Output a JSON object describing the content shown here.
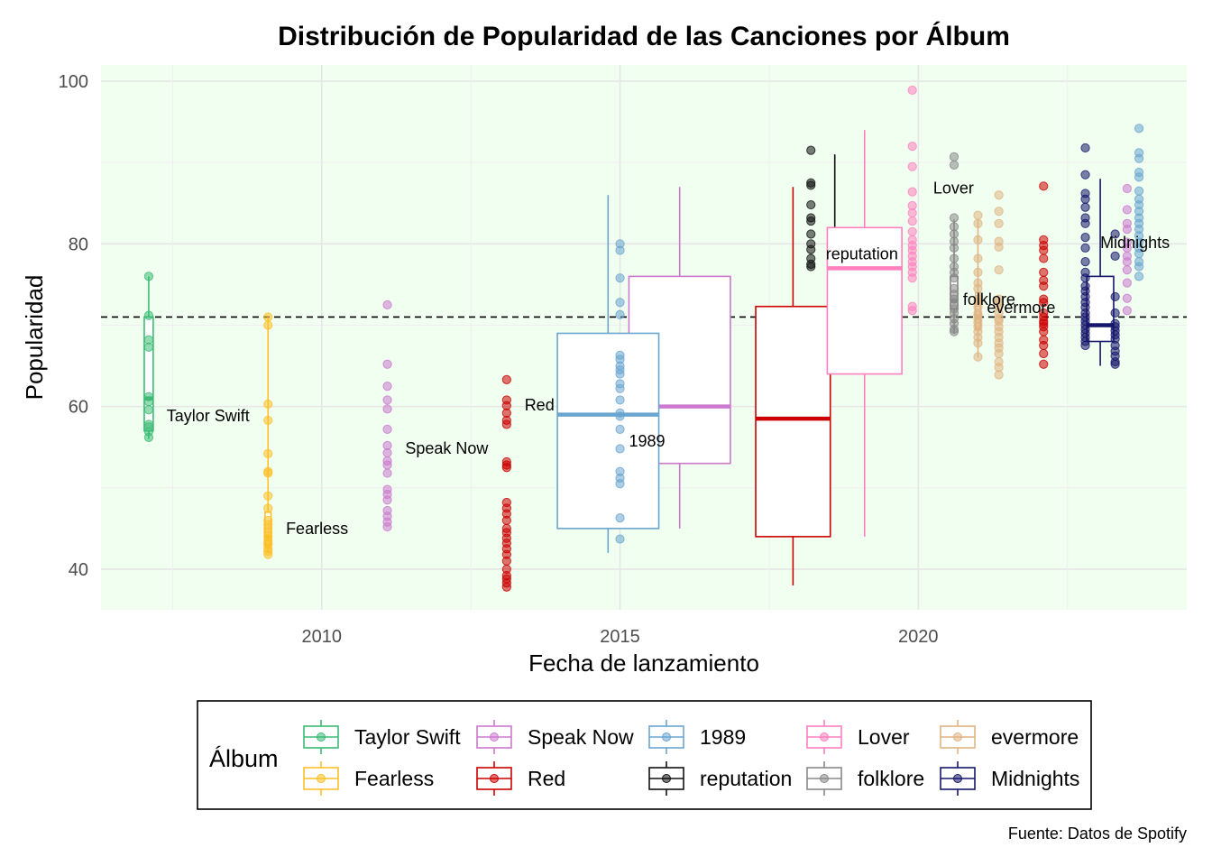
{
  "chart_data": {
    "type": "box+scatter",
    "title": "Distribución de Popularidad de las Canciones por Álbum",
    "xlabel": "Fecha de lanzamiento",
    "ylabel": "Popularidad",
    "caption": "Fuente: Datos de Spotify",
    "legend_title": "Álbum",
    "xlim": [
      2006.3,
      2024.5
    ],
    "ylim": [
      35,
      102
    ],
    "x_ticks": [
      2010,
      2015,
      2020
    ],
    "y_ticks": [
      40,
      60,
      80,
      100
    ],
    "reference_line": {
      "y": 71,
      "style": "dashed"
    },
    "background": "#f0fff0",
    "albums": [
      {
        "name": "Taylor Swift",
        "color": "#3cbb75",
        "x": 2007.1,
        "box_x": 2007.1,
        "box_width": 0.15,
        "box": {
          "min": 56,
          "q1": 57,
          "median": 61,
          "q3": 71,
          "max": 76
        },
        "points": [
          76,
          71.2,
          68.2,
          67.3,
          61.2,
          60.6,
          59.6,
          57.8,
          57.5,
          56.9,
          56.2
        ],
        "label": {
          "text": "Taylor Swift",
          "x": 2007.4,
          "y": 58.2
        }
      },
      {
        "name": "Fearless",
        "color": "#fdc029",
        "x": 2009.1,
        "box_x": 2009.1,
        "box_width": 0.1,
        "box": {
          "min": 42,
          "q1": 43,
          "median": 44,
          "q3": 47,
          "max": 71
        },
        "points": [
          71,
          70,
          60.3,
          58.3,
          54.2,
          52,
          51.8,
          49,
          47.5,
          46,
          45.5,
          45,
          44.5,
          44,
          43.5,
          43.2,
          43,
          42.5,
          42.2,
          41.8
        ],
        "label": {
          "text": "Fearless",
          "x": 2009.4,
          "y": 44.3
        }
      },
      {
        "name": "Speak Now",
        "color": "#cc79cf",
        "x": 2011.1,
        "box_x": 2016.0,
        "box_width": 1.7,
        "box": {
          "min": 45,
          "q1": 53,
          "median": 60,
          "q3": 76,
          "max": 87
        },
        "points": [
          72.5,
          65.2,
          62.5,
          60.8,
          59.7,
          57.2,
          55.2,
          54.3,
          53.3,
          52.8,
          51.8,
          49.8,
          49.2,
          48.5,
          47.2,
          46.5,
          45.8,
          45.2
        ],
        "label": {
          "text": "Speak Now",
          "x": 2011.4,
          "y": 54.2
        }
      },
      {
        "name": "Red",
        "color": "#cc0000",
        "x": 2013.1,
        "box_x": 2017.9,
        "box_width": 1.25,
        "box": {
          "min": 38,
          "q1": 44,
          "median": 58.5,
          "q3": 72.3,
          "max": 87
        },
        "points": [
          63.3,
          60.8,
          60.1,
          59.2,
          58.3,
          57.8,
          53.2,
          52.8,
          52.5,
          48.2,
          47.5,
          46.8,
          46,
          45,
          44.5,
          43.8,
          43.2,
          42.5,
          41.8,
          41,
          40,
          39.2,
          38.8,
          38.3,
          37.8
        ],
        "label": {
          "text": "Red",
          "x": 2013.4,
          "y": 59.5
        }
      },
      {
        "name": "1989",
        "color": "#6aa5d0",
        "x": 2015.0,
        "box_x": 2014.8,
        "box_width": 1.7,
        "box": {
          "min": 42,
          "q1": 45,
          "median": 59,
          "q3": 69,
          "max": 86
        },
        "points": [
          80,
          79.2,
          75.8,
          72.8,
          71.3,
          66.3,
          65.8,
          65,
          64.5,
          64,
          62.8,
          62.2,
          60.8,
          59.2,
          58.8,
          57.2,
          54.8,
          52,
          51.2,
          50.5,
          46.3,
          43.7
        ],
        "label": {
          "text": "1989",
          "x": 2015.15,
          "y": 55.1
        }
      },
      {
        "name": "reputation",
        "color": "#111111",
        "x": 2018.2,
        "box_x": 2018.6,
        "box_width": 0.04,
        "box": {
          "min": 77.5,
          "q1": 77.5,
          "median": 78,
          "q3": 78.5,
          "max": 91
        },
        "points": [
          91.5,
          87.5,
          87.2,
          84.8,
          83.2,
          82.8,
          81.2,
          80,
          79.3,
          78.2,
          77.5,
          77.2
        ],
        "label": {
          "text": "reputation",
          "x": 2018.45,
          "y": 78.1
        }
      },
      {
        "name": "Lover",
        "color": "#ff7fbf",
        "x": 2019.9,
        "box_x": 2019.1,
        "box_width": 1.25,
        "box": {
          "min": 44,
          "q1": 64,
          "median": 77,
          "q3": 82,
          "max": 94
        },
        "points": [
          98.9,
          92,
          89.5,
          86.4,
          84.7,
          83.8,
          82.8,
          81.5,
          80.5,
          79.8,
          79.2,
          78.5,
          77.8,
          77.2,
          76.5,
          75.8,
          72.3,
          71.8
        ],
        "label": {
          "text": "Lover",
          "x": 2020.25,
          "y": 86.2
        }
      },
      {
        "name": "folklore",
        "color": "#888888",
        "x": 2020.6,
        "box_x": 2020.6,
        "box_width": 0.12,
        "box": {
          "min": 69,
          "q1": 72,
          "median": 73,
          "q3": 76,
          "max": 83
        },
        "points": [
          90.7,
          89.7,
          83.2,
          82.1,
          81.2,
          80.3,
          79.5,
          78.2,
          77.2,
          76.5,
          75.8,
          74.5,
          73.8,
          73.2,
          72.5,
          72,
          71.5,
          70.8,
          70.2,
          69.5,
          69.2
        ],
        "label": {
          "text": "folklore",
          "x": 2020.75,
          "y": 72.5
        }
      },
      {
        "name": "evermore",
        "color": "#e0b482",
        "x": 2021.0,
        "box_x": 2021.0,
        "box_width": 0.08,
        "box": {
          "min": 66,
          "q1": 69.5,
          "median": 71,
          "q3": 74,
          "max": 83
        },
        "points": [
          83.5,
          82.5,
          80.5,
          78.2,
          76.5,
          75.2,
          74.5,
          73.2,
          72.8,
          72.2,
          71.5,
          71.2,
          70.8,
          70.3,
          69.8,
          69.2,
          68.5,
          67.8,
          66.1
        ],
        "label": {
          "text": "evermore",
          "x": 2021.15,
          "y": 71.5
        }
      },
      {
        "name": "Midnights",
        "color": "#16166c",
        "x": 2022.8,
        "box_x": 2023.05,
        "box_width": 0.45,
        "box": {
          "min": 65,
          "q1": 68,
          "median": 70,
          "q3": 76,
          "max": 88
        },
        "points": [
          91.8,
          88.5,
          86.2,
          85.5,
          84.5,
          83.2,
          82.5,
          80.8,
          79.5,
          77.8,
          76.5,
          75.8,
          74.8,
          74.2,
          73.5,
          72.8,
          72.2,
          71.5,
          71,
          70.5,
          70,
          69.5,
          69,
          68.5,
          68,
          67.5
        ],
        "label": {
          "text": "Midnights",
          "x": 2023.05,
          "y": 79.5
        }
      }
    ],
    "extra_points": [
      {
        "album": "evermore",
        "x": 2021.35,
        "values": [
          86,
          84,
          82.5,
          80.3,
          79.6,
          76.8,
          73.2,
          72.8,
          72.3,
          71.5,
          70.8,
          70.5,
          69.8,
          69.2,
          68.5,
          67.8,
          67.2,
          66.5,
          65.5,
          64.8,
          63.9
        ]
      },
      {
        "album": "Red",
        "x": 2022.1,
        "values": [
          87.1,
          80.5,
          79.8,
          79.2,
          78.2,
          76.5,
          75.5,
          74.8,
          73.2,
          72.8,
          71.5,
          71,
          70.5,
          70.2,
          69.8,
          69.2,
          68.2,
          67.5,
          66.5,
          65.2
        ]
      },
      {
        "album": "Midnights",
        "x": 2023.3,
        "values": [
          81.2,
          78.5,
          73.5,
          71.5,
          70.2,
          69.8,
          69.3,
          68.8,
          68.3,
          67.5,
          66.8,
          66.2,
          65.5,
          65.2
        ]
      },
      {
        "album": "Speak Now",
        "x": 2023.5,
        "values": [
          86.8,
          84.2,
          82.5,
          81.8,
          80.2,
          79.5,
          78.5,
          77.8,
          76.8,
          75.2,
          73.3,
          71.8
        ]
      },
      {
        "album": "1989",
        "x": 2023.7,
        "values": [
          94.2,
          91.2,
          90.5,
          88.8,
          88.2,
          86.5,
          85.5,
          84.8,
          84,
          83.2,
          82.5,
          81.8,
          81,
          80.2,
          79.5,
          78.8,
          77.8,
          77.2,
          76
        ]
      }
    ],
    "legend_entries": [
      [
        "Taylor Swift",
        "Fearless"
      ],
      [
        "Speak Now",
        "Red"
      ],
      [
        "1989",
        "reputation"
      ],
      [
        "Lover",
        "folklore"
      ],
      [
        "evermore",
        "Midnights"
      ]
    ]
  }
}
